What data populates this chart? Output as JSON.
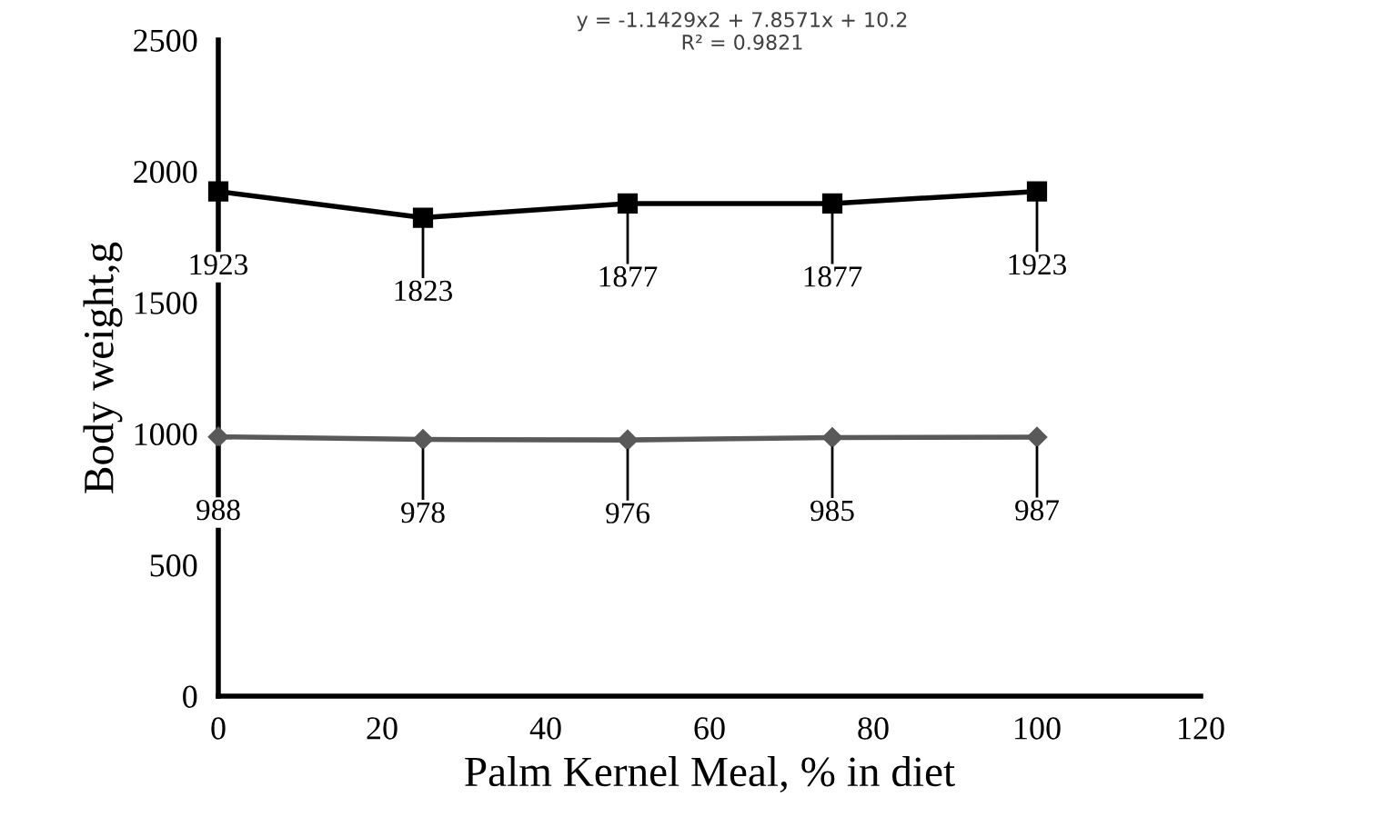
{
  "chart_data": {
    "type": "line",
    "xlabel": "Palm Kernel Meal, % in diet",
    "ylabel": "Body weight,g",
    "x": [
      0,
      25,
      50,
      75,
      100
    ],
    "series": [
      {
        "color": "#000000",
        "marker": "square",
        "values": [
          1923,
          1823,
          1877,
          1877,
          1923
        ]
      },
      {
        "color": "#595959",
        "marker": "diamond",
        "values": [
          988,
          978,
          976,
          985,
          987
        ]
      }
    ],
    "xlim": [
      0,
      120
    ],
    "xticks": [
      0,
      20,
      40,
      60,
      80,
      100,
      120
    ],
    "ylim": [
      0,
      2500
    ],
    "yticks": [
      0,
      500,
      1000,
      1500,
      2000,
      2500
    ],
    "grid": false,
    "legend": false,
    "data_labels": true,
    "line_style": "solid",
    "annotations": [
      "y = -1.1429x2 + 7.8571x + 10.2\nR² = 0.9821"
    ]
  }
}
